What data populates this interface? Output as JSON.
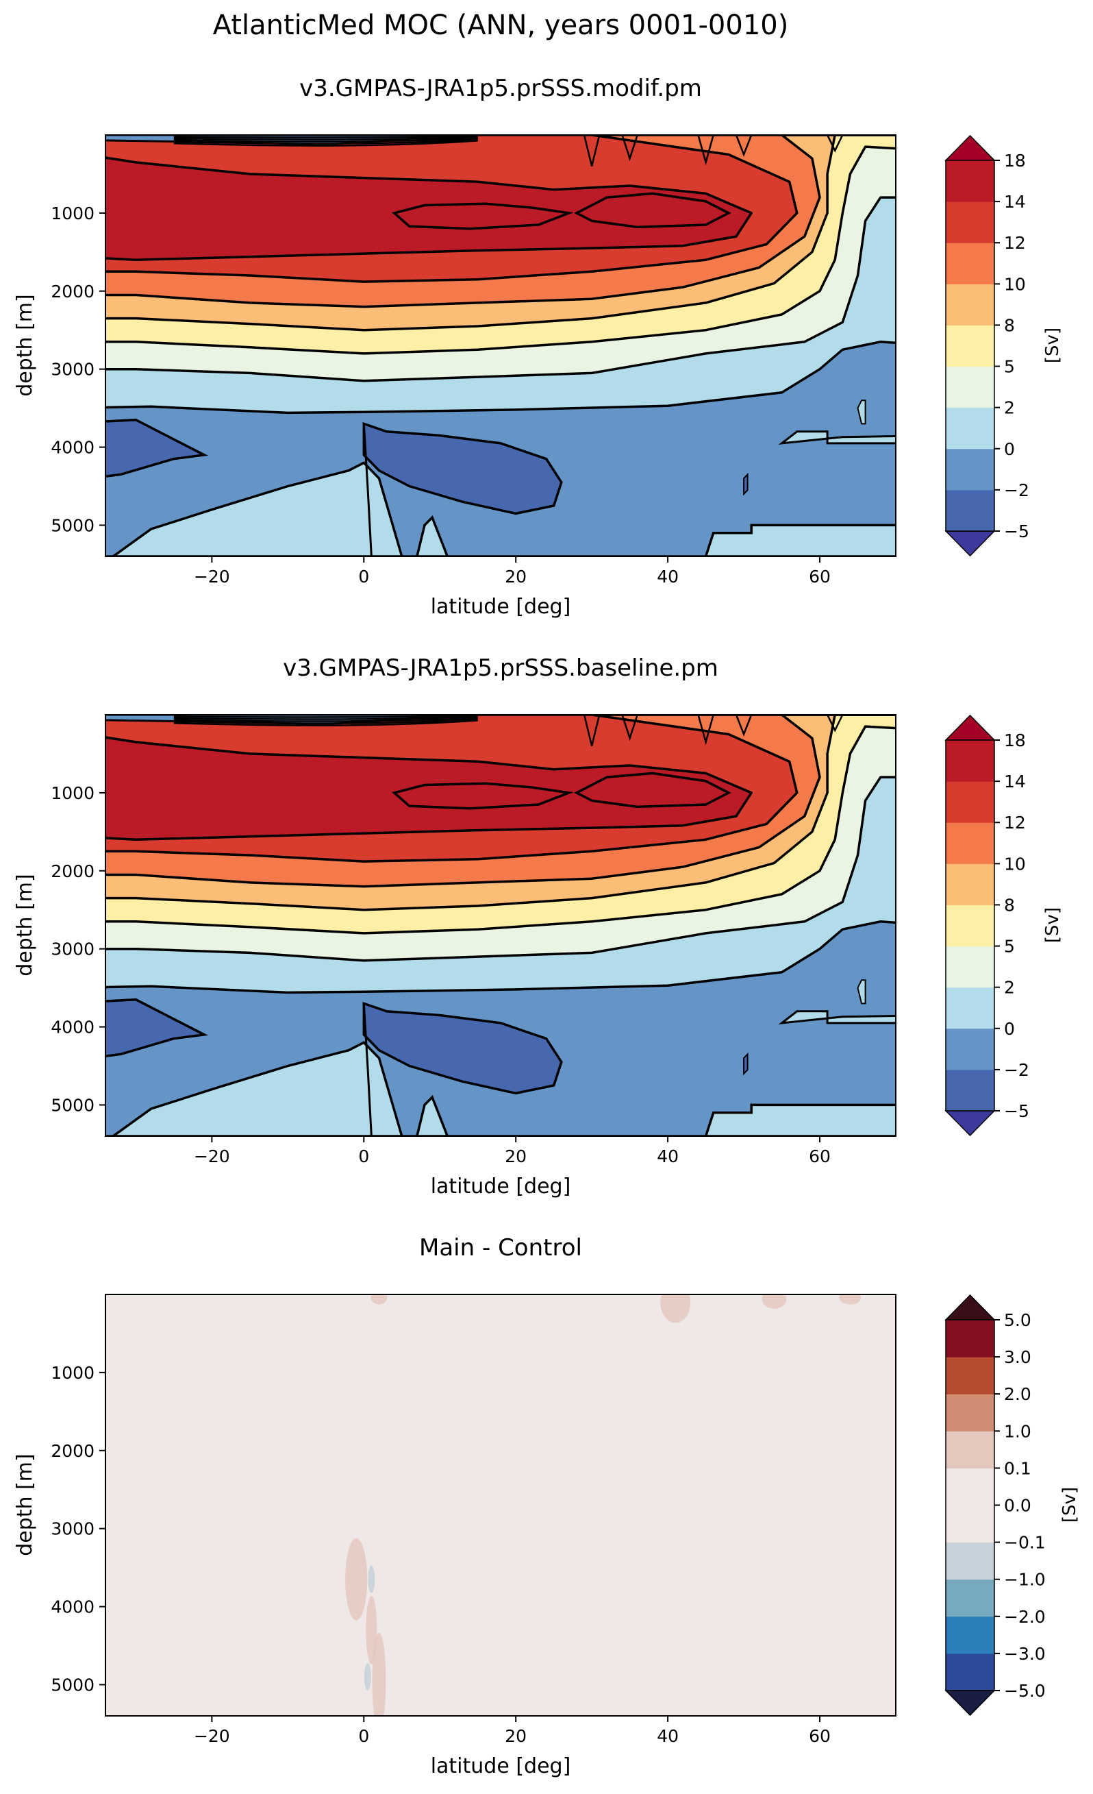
{
  "figure": {
    "suptitle": "AtlanticMed MOC (ANN, years 0001-0010)"
  },
  "chart_data": [
    {
      "type": "heatmap",
      "title": "v3.GMPAS-JRA1p5.prSSS.modif.pm",
      "xlabel": "latitude [deg]",
      "ylabel": "depth [m]",
      "xlim": [
        -34,
        70
      ],
      "ylim": [
        0,
        5400
      ],
      "y_inverted": true,
      "xticks": [
        -20,
        0,
        20,
        40,
        60
      ],
      "yticks": [
        1000,
        2000,
        3000,
        4000,
        5000
      ],
      "colorbar": {
        "label": "[Sv]",
        "levels": [
          -5,
          -2,
          0,
          2,
          5,
          8,
          10,
          12,
          14,
          18
        ],
        "tick_labels": [
          "−5",
          "−2",
          "0",
          "2",
          "5",
          "8",
          "10",
          "12",
          "14",
          "18"
        ],
        "colors": [
          "#4767ae",
          "#6495c6",
          "#b3dceb",
          "#e9f5e2",
          "#fdefa5",
          "#fcbe76",
          "#f47a4b",
          "#d73c2f",
          "#bb1a27"
        ],
        "under_color": "#3d3a9e",
        "over_color": "#a50026"
      },
      "features": {
        "upper_cell_max_sv": 14,
        "upper_cell_core_depth_m": 1100,
        "upper_cell_core_lat_range": [
          10,
          50
        ],
        "abyssal_cell_min_sv": -2,
        "abyssal_cell_lat_range": [
          0,
          26
        ]
      }
    },
    {
      "type": "heatmap",
      "title": "v3.GMPAS-JRA1p5.prSSS.baseline.pm",
      "xlabel": "latitude [deg]",
      "ylabel": "depth [m]",
      "xlim": [
        -34,
        70
      ],
      "ylim": [
        0,
        5400
      ],
      "y_inverted": true,
      "xticks": [
        -20,
        0,
        20,
        40,
        60
      ],
      "yticks": [
        1000,
        2000,
        3000,
        4000,
        5000
      ],
      "colorbar": {
        "label": "[Sv]",
        "levels": [
          -5,
          -2,
          0,
          2,
          5,
          8,
          10,
          12,
          14,
          18
        ],
        "tick_labels": [
          "−5",
          "−2",
          "0",
          "2",
          "5",
          "8",
          "10",
          "12",
          "14",
          "18"
        ],
        "colors": [
          "#4767ae",
          "#6495c6",
          "#b3dceb",
          "#e9f5e2",
          "#fdefa5",
          "#fcbe76",
          "#f47a4b",
          "#d73c2f",
          "#bb1a27"
        ],
        "under_color": "#3d3a9e",
        "over_color": "#a50026"
      },
      "features": {
        "upper_cell_max_sv": 14,
        "upper_cell_core_depth_m": 1100,
        "upper_cell_core_lat_range": [
          10,
          50
        ],
        "abyssal_cell_min_sv": -2,
        "abyssal_cell_lat_range": [
          0,
          26
        ]
      }
    },
    {
      "type": "heatmap",
      "title": "Main - Control",
      "xlabel": "latitude [deg]",
      "ylabel": "depth [m]",
      "xlim": [
        -34,
        70
      ],
      "ylim": [
        0,
        5400
      ],
      "y_inverted": true,
      "xticks": [
        -20,
        0,
        20,
        40,
        60
      ],
      "yticks": [
        1000,
        2000,
        3000,
        4000,
        5000
      ],
      "colorbar": {
        "label": "[Sv]",
        "levels": [
          -5.0,
          -3.0,
          -2.0,
          -1.0,
          -0.1,
          0.0,
          0.1,
          1.0,
          2.0,
          3.0,
          5.0
        ],
        "tick_labels": [
          "−5.0",
          "−3.0",
          "−2.0",
          "−1.0",
          "−0.1",
          "0.0",
          "0.1",
          "1.0",
          "2.0",
          "3.0",
          "5.0"
        ],
        "colors": [
          "#2b4b9a",
          "#2c7fb8",
          "#77aac1",
          "#c8d2da",
          "#efe8e7",
          "#efe8e7",
          "#e4c8be",
          "#d38c74",
          "#b84c31",
          "#850f23"
        ],
        "under_color": "#1a1e44",
        "over_color": "#3a0e16"
      },
      "background_value_sv": 0.0,
      "features": {
        "small_positive_patches": [
          {
            "lat": 41,
            "depth_m": 100,
            "value_sv": 0.5
          },
          {
            "lat": 54,
            "depth_m": 60,
            "value_sv": 0.5
          },
          {
            "lat": 64,
            "depth_m": 40,
            "value_sv": 0.5
          },
          {
            "lat": 2,
            "depth_m": 40,
            "value_sv": 0.5
          },
          {
            "lat": -1,
            "depth_m": 3650,
            "value_sv": 0.5
          },
          {
            "lat": 1,
            "depth_m": 4300,
            "value_sv": 0.5
          },
          {
            "lat": 2,
            "depth_m": 4950,
            "value_sv": 0.5
          }
        ],
        "small_negative_patches": [
          {
            "lat": 1,
            "depth_m": 3650,
            "value_sv": -0.5
          },
          {
            "lat": 0.5,
            "depth_m": 4900,
            "value_sv": -0.5
          }
        ]
      }
    }
  ]
}
